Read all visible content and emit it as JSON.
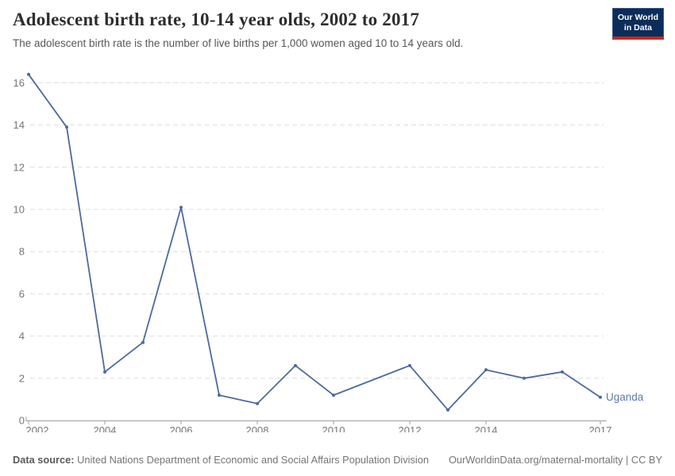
{
  "header": {
    "title": "Adolescent birth rate, 10-14 year olds, 2002 to 2017",
    "subtitle": "The adolescent birth rate is the number of live births per 1,000 women aged 10 to 14 years old.",
    "logo_line1": "Our World",
    "logo_line2": "in Data"
  },
  "colors": {
    "series_blue": "#4c6a9c",
    "end_label_blue": "#5b7bb0",
    "gridline": "#dedede",
    "axis": "#9e9e9e",
    "logo_navy": "#0c2d5a",
    "logo_red": "#c7281c"
  },
  "chart_data": {
    "type": "line",
    "title": "Adolescent birth rate, 10-14 year olds, 2002 to 2017",
    "xlabel": "",
    "ylabel": "",
    "x": [
      2002,
      2003,
      2004,
      2005,
      2006,
      2007,
      2008,
      2009,
      2010,
      2011,
      2012,
      2013,
      2014,
      2015,
      2016,
      2017
    ],
    "series": [
      {
        "name": "Uganda",
        "values": [
          16.4,
          13.9,
          2.3,
          3.7,
          10.1,
          1.2,
          0.8,
          2.6,
          1.2,
          null,
          2.6,
          0.5,
          2.4,
          2.0,
          2.3,
          1.1
        ]
      }
    ],
    "xticks": [
      2002,
      2004,
      2006,
      2008,
      2010,
      2012,
      2014,
      2017
    ],
    "yticks": [
      0,
      2,
      4,
      6,
      8,
      10,
      12,
      14,
      16
    ],
    "ylim": [
      0,
      16.5
    ],
    "xlim": [
      2002,
      2017
    ],
    "grid": "horizontal-dashed",
    "legend": "line-end-label",
    "markers": true,
    "note": "no data point for 2011; line interpolates 2010-2012"
  },
  "footer": {
    "datasource_label": "Data source:",
    "datasource_value": " United Nations Department of Economic and Social Affairs Population Division",
    "link": "OurWorldinData.org/maternal-mortality",
    "license": " | CC BY"
  }
}
